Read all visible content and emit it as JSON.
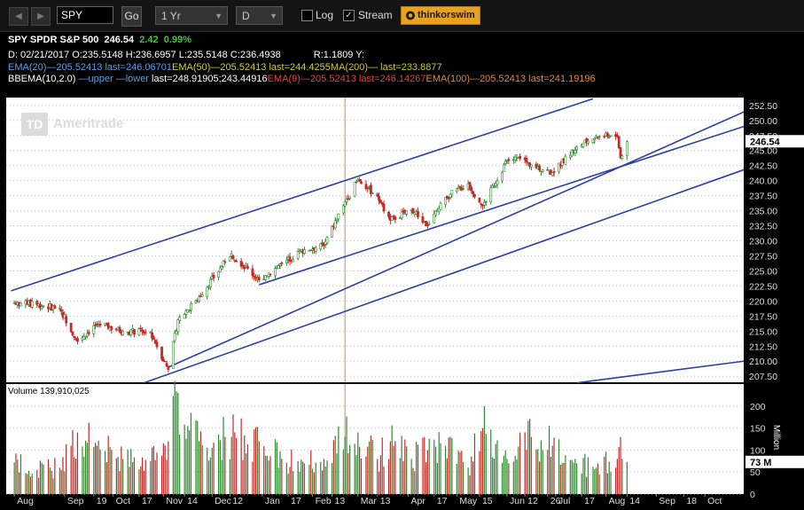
{
  "toolbar": {
    "symbol": "SPY",
    "go_label": "Go",
    "period": "1 Yr",
    "interval": "D",
    "log_label": "Log",
    "log_checked": false,
    "stream_label": "Stream",
    "stream_checked": true,
    "brand_label": "thinkorswim",
    "back_icon": "triangle-left-icon",
    "forward_icon": "triangle-right-icon"
  },
  "header": {
    "ticker": "SPY",
    "name": "SPDR S&P 500",
    "last": "246.54",
    "change": "2.42",
    "change_pct": "0.99%",
    "d_line": {
      "date": "D: 02/21/2017",
      "open": "O:235.5148",
      "high": "H:236.6957",
      "low": "L:235.5148",
      "close": "C:236.4938",
      "r": "R:1.1809",
      "y": "Y:"
    },
    "ema_line": {
      "ema20": "EMA(20)",
      "ema20_val": "—205.52413",
      "ema20_last": "last=246.06701",
      "ema50": "EMA(50)",
      "ema50_val": "—205.52413",
      "ema50_last": "last=244.4255",
      "ma200": "MA(200)",
      "ma200_val": "—",
      "ma200_last": "last=233.8877"
    },
    "bb_line": {
      "bbema": "BBEMA(10,2.0)",
      "upper": "—upper",
      "lower": "—lower",
      "bb_last": "last=248.91905;243.44916",
      "ema9": "EMA(9)",
      "ema9_val": "—205.52413",
      "ema9_last": "last=246.14267",
      "ema100": "EMA(100)",
      "ema100_val": "—205.52413",
      "ema100_last": "last=241.19196"
    }
  },
  "colors": {
    "up": "#2e8b2e",
    "down": "#c82828",
    "accent_green": "#3cc83c",
    "trendline": "#2a3fa8",
    "ema20": "#5aa0e6",
    "ema50": "#d0d03a",
    "ma200": "#c8c832",
    "bb_upper": "#5aa0e6",
    "bb_lower": "#5aa0e6",
    "ema9": "#e64040",
    "ema100": "#e68a2a",
    "grid": "#c8c8c8",
    "panel_bg": "#ffffff"
  },
  "watermark": "Ameritrade",
  "chart_data": {
    "type": "candlestick",
    "price_axis": {
      "ticks": [
        "252.50",
        "250.00",
        "247.50",
        "245.00",
        "242.50",
        "240.00",
        "237.50",
        "235.00",
        "232.50",
        "230.00",
        "227.50",
        "225.00",
        "222.50",
        "220.00",
        "217.50",
        "215.00",
        "212.50",
        "210.00",
        "207.50"
      ],
      "range": [
        206.5,
        253.8
      ]
    },
    "last_price_label": "246.54",
    "volume": {
      "label": "Volume 139,910,025",
      "ticks": [
        "200",
        "150",
        "100",
        "50",
        "0"
      ],
      "unit": "Million",
      "range": [
        0,
        230
      ],
      "last_label": "73 M"
    },
    "x_axis": {
      "labels": [
        "Aug",
        "Sep",
        "19",
        "Oct",
        "17",
        "Nov",
        "14",
        "Dec",
        "12",
        "Jan",
        "17",
        "Feb",
        "13",
        "Mar",
        "13",
        "Apr",
        "17",
        "May",
        "15",
        "Jun",
        "12",
        "26",
        "Jul",
        "17",
        "Aug",
        "14",
        "Sep",
        "18",
        "Oct"
      ]
    },
    "anchors": [
      [
        "2016-08-01",
        219.7,
        72
      ],
      [
        "2016-08-15",
        219.4,
        55
      ],
      [
        "2016-08-29",
        218.8,
        60
      ],
      [
        "2016-09-09",
        213.3,
        140
      ],
      [
        "2016-09-21",
        216.2,
        110
      ],
      [
        "2016-10-07",
        215.0,
        80
      ],
      [
        "2016-10-24",
        214.8,
        75
      ],
      [
        "2016-11-04",
        208.6,
        120
      ],
      [
        "2016-11-10",
        216.9,
        230
      ],
      [
        "2016-11-23",
        220.7,
        120
      ],
      [
        "2016-12-09",
        226.5,
        130
      ],
      [
        "2016-12-13",
        227.8,
        130
      ],
      [
        "2016-12-30",
        223.5,
        120
      ],
      [
        "2017-01-13",
        226.2,
        80
      ],
      [
        "2017-01-27",
        228.5,
        70
      ],
      [
        "2017-02-08",
        229.2,
        80
      ],
      [
        "2017-02-21",
        236.5,
        130
      ],
      [
        "2017-03-01",
        240.1,
        140
      ],
      [
        "2017-03-13",
        237.4,
        80
      ],
      [
        "2017-03-21",
        233.4,
        120
      ],
      [
        "2017-04-03",
        235.2,
        80
      ],
      [
        "2017-04-13",
        232.5,
        100
      ],
      [
        "2017-04-24",
        237.2,
        110
      ],
      [
        "2017-05-08",
        239.5,
        60
      ],
      [
        "2017-05-17",
        235.8,
        150
      ],
      [
        "2017-06-01",
        243.4,
        80
      ],
      [
        "2017-06-09",
        243.7,
        140
      ],
      [
        "2017-06-16",
        242.6,
        130
      ],
      [
        "2017-06-29",
        241.3,
        110
      ],
      [
        "2017-07-14",
        245.6,
        70
      ],
      [
        "2017-07-26",
        247.4,
        60
      ],
      [
        "2017-08-08",
        247.4,
        80
      ],
      [
        "2017-08-10",
        243.8,
        130
      ],
      [
        "2017-08-11",
        244.1,
        80
      ],
      [
        "2017-08-14",
        246.5,
        73
      ]
    ],
    "trendlines": [
      [
        [
          "2016-07-30",
          221.7
        ],
        [
          "2017-07-24",
          253.6
        ]
      ],
      [
        [
          "2016-11-04",
          209.0
        ],
        [
          "2017-10-25",
          251.4
        ]
      ],
      [
        [
          "2016-12-30",
          222.7
        ],
        [
          "2017-10-25",
          249.0
        ]
      ],
      [
        [
          "2016-10-20",
          206.4
        ],
        [
          "2017-10-25",
          241.8
        ]
      ],
      [
        [
          "2017-07-14",
          206.4
        ],
        [
          "2017-10-25",
          210.0
        ]
      ]
    ],
    "markers": [
      [
        "2017-02-21"
      ]
    ]
  }
}
